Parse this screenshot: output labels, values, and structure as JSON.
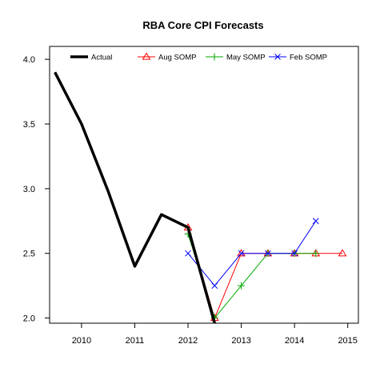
{
  "chart_data": {
    "type": "line",
    "title": "RBA Core CPI Forecasts",
    "xlabel": "",
    "ylabel": "",
    "xlim": [
      2009.4,
      2015.2
    ],
    "ylim": [
      1.96,
      4.1
    ],
    "x_ticks": [
      2010,
      2011,
      2012,
      2013,
      2014,
      2015
    ],
    "y_ticks": [
      2.0,
      2.5,
      3.0,
      3.5,
      4.0
    ],
    "y_tick_labels": [
      "2.0",
      "2.5",
      "3.0",
      "3.5",
      "4.0"
    ],
    "grid": false,
    "legend_position": "top",
    "series": [
      {
        "name": "Actual",
        "color": "#000000",
        "marker": "none",
        "x": [
          2009.5,
          2010.0,
          2010.5,
          2011.0,
          2011.5,
          2012.0,
          2012.5
        ],
        "y": [
          3.9,
          3.5,
          2.98,
          2.4,
          2.8,
          2.7,
          1.96
        ]
      },
      {
        "name": "Aug SOMP",
        "color": "#ff0000",
        "marker": "triangle",
        "x": [
          2012.0,
          2012.5,
          2013.0,
          2013.5,
          2014.0,
          2014.4,
          2014.9
        ],
        "y": [
          2.7,
          2.0,
          2.5,
          2.5,
          2.5,
          2.5,
          2.5
        ]
      },
      {
        "name": "May SOMP",
        "color": "#00aa00",
        "marker": "plus",
        "x": [
          2012.0,
          2012.5,
          2013.0,
          2013.5,
          2014.0,
          2014.4
        ],
        "y": [
          2.65,
          2.0,
          2.25,
          2.5,
          2.5,
          2.5
        ]
      },
      {
        "name": "Feb SOMP",
        "color": "#0000ff",
        "marker": "x",
        "x": [
          2012.0,
          2012.5,
          2013.0,
          2013.5,
          2014.0,
          2014.4
        ],
        "y": [
          2.5,
          2.25,
          2.5,
          2.5,
          2.5,
          2.75
        ]
      }
    ]
  }
}
